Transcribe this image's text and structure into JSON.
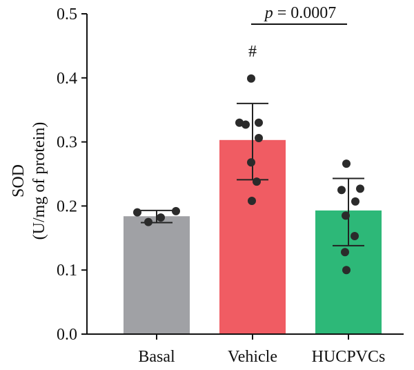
{
  "chart_data": {
    "type": "bar",
    "categories": [
      "Basal",
      "Vehicle",
      "HUCPVCs"
    ],
    "ylabel_line1": "SOD",
    "ylabel_line2": "(U/mg of protein)",
    "ylim": [
      0.0,
      0.5
    ],
    "yticks": [
      0.0,
      0.1,
      0.2,
      0.3,
      0.4,
      0.5
    ],
    "ytick_labels": [
      "0.0",
      "0.1",
      "0.2",
      "0.3",
      "0.4",
      "0.5"
    ],
    "means": [
      0.184,
      0.303,
      0.193
    ],
    "error_bars": [
      {
        "low": 0.174,
        "high": 0.193
      },
      {
        "low": 0.241,
        "high": 0.36
      },
      {
        "low": 0.138,
        "high": 0.243
      }
    ],
    "points": [
      [
        0.19,
        0.175,
        0.182,
        0.192
      ],
      [
        0.399,
        0.33,
        0.327,
        0.33,
        0.306,
        0.268,
        0.238,
        0.208
      ],
      [
        0.266,
        0.227,
        0.225,
        0.207,
        0.185,
        0.153,
        0.128,
        0.1
      ]
    ],
    "bar_colors": [
      "#A0A1A5",
      "#F05C63",
      "#2DB878"
    ],
    "significance_text": "= 0.0007",
    "significance_italic": "p",
    "significance_pair": [
      "Vehicle",
      "HUCPVCs"
    ],
    "marker_text": "#",
    "marker_category": "Vehicle"
  }
}
